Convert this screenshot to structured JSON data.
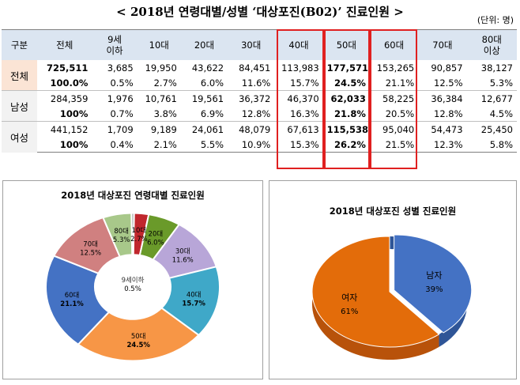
{
  "title": "< 2018년  연령대별/성별 ‘대상포진(B02)’ 진료인원 >",
  "unit": "(단위: 명)",
  "table": {
    "headers": [
      "구분",
      "전체",
      "9세\n이하",
      "10대",
      "20대",
      "30대",
      "40대",
      "50대",
      "60대",
      "70대",
      "80대\n이상"
    ],
    "rows": [
      {
        "label": "전체",
        "counts": [
          "725,511",
          "3,685",
          "19,950",
          "43,622",
          "84,451",
          "113,983",
          "177,571",
          "153,265",
          "90,857",
          "38,127"
        ],
        "pcts": [
          "100.0%",
          "0.5%",
          "2.7%",
          "6.0%",
          "11.6%",
          "15.7%",
          "24.5%",
          "21.1%",
          "12.5%",
          "5.3%"
        ]
      },
      {
        "label": "남성",
        "counts": [
          "284,359",
          "1,976",
          "10,761",
          "19,561",
          "36,372",
          "46,370",
          "62,033",
          "58,225",
          "36,384",
          "12,677"
        ],
        "pcts": [
          "100%",
          "0.7%",
          "3.8%",
          "6.9%",
          "12.8%",
          "16.3%",
          "21.8%",
          "20.5%",
          "12.8%",
          "4.5%"
        ]
      },
      {
        "label": "여성",
        "counts": [
          "441,152",
          "1,709",
          "9,189",
          "24,061",
          "48,079",
          "67,613",
          "115,538",
          "95,040",
          "54,473",
          "25,450"
        ],
        "pcts": [
          "100%",
          "0.4%",
          "2.1%",
          "5.5%",
          "10.9%",
          "15.3%",
          "26.2%",
          "21.5%",
          "12.3%",
          "5.8%"
        ]
      }
    ]
  },
  "chart_data": [
    {
      "type": "pie",
      "title": "2018년 대상포진 연령대별 진료인원",
      "categories": [
        "9세이하",
        "10대",
        "20대",
        "30대",
        "40대",
        "50대",
        "60대",
        "70대",
        "80대"
      ],
      "values": [
        0.5,
        2.7,
        6.0,
        11.6,
        15.7,
        24.5,
        21.1,
        12.5,
        5.3
      ],
      "value_labels": [
        "0.5%",
        "2.7%",
        "6.0%",
        "11.6%",
        "15.7%",
        "24.5%",
        "21.1%",
        "12.5%",
        "5.3%"
      ],
      "colors": [
        "#9e9e9e",
        "#c0272d",
        "#6a9a2a",
        "#b8a6d8",
        "#3fa8c8",
        "#f79646",
        "#4472c4",
        "#d08080",
        "#a8c88a"
      ],
      "donut": true
    },
    {
      "type": "pie",
      "title": "2018년 대상포진 성별 진료인원",
      "categories": [
        "남자",
        "여자"
      ],
      "values": [
        39,
        61
      ],
      "value_labels": [
        "39%",
        "61%"
      ],
      "colors": [
        "#4472c4",
        "#e36c0a"
      ]
    }
  ]
}
